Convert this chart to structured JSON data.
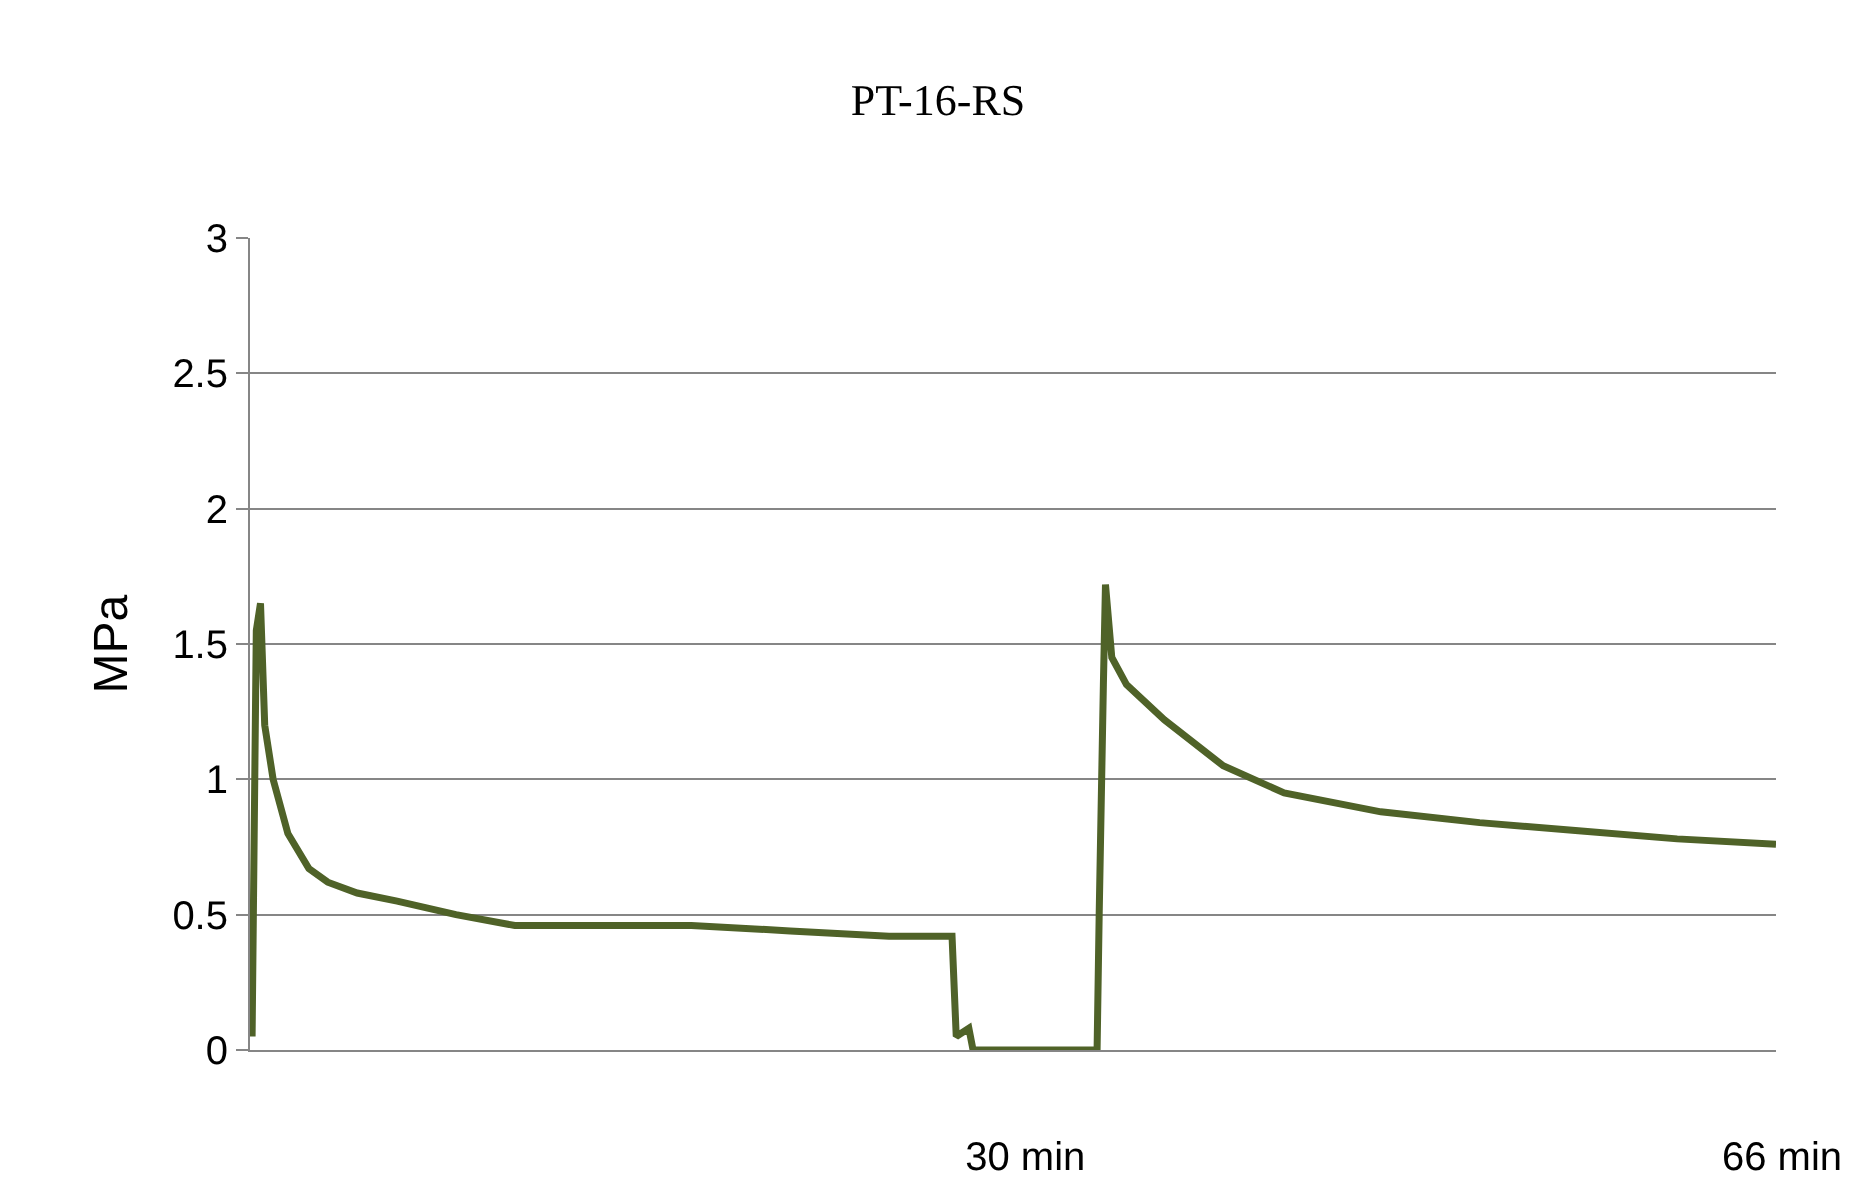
{
  "chart_data": {
    "type": "line",
    "title": "PT-16-RS",
    "ylabel": "MPa",
    "x": [
      -6.5,
      -6.3,
      -6.1,
      -5.9,
      -5.5,
      -4.8,
      -3.8,
      -2.9,
      -1.5,
      0.4,
      3.2,
      6.0,
      9.8,
      14.4,
      19.1,
      23.8,
      26.8,
      27.0,
      27.6,
      27.8,
      33.7,
      33.8,
      34.0,
      34.1,
      34.4,
      35.1,
      36.9,
      39.7,
      42.6,
      47.2,
      51.9,
      56.6,
      61.3,
      66.0
    ],
    "series": [
      {
        "color": "#4f6228",
        "values": [
          0.05,
          1.55,
          1.65,
          1.2,
          1.0,
          0.8,
          0.67,
          0.62,
          0.58,
          0.55,
          0.5,
          0.46,
          0.46,
          0.46,
          0.44,
          0.42,
          0.42,
          0.05,
          0.08,
          0,
          0,
          0.5,
          1.35,
          1.72,
          1.45,
          1.35,
          1.22,
          1.05,
          0.95,
          0.88,
          0.84,
          0.81,
          0.78,
          0.76
        ]
      }
    ],
    "xlim": [
      -6.6,
      66
    ],
    "xticks": [
      {
        "value": 30,
        "label": "30 min"
      },
      {
        "value": 66,
        "label": "66 min"
      }
    ],
    "ylim": [
      0,
      3
    ],
    "yticks": [
      0,
      0.5,
      1,
      1.5,
      2,
      2.5,
      3
    ],
    "grid": "y",
    "marker": "none",
    "line_style": "solid"
  }
}
